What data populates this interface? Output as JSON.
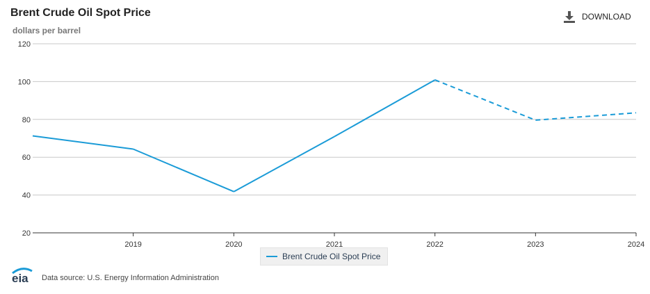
{
  "header": {
    "title": "Brent Crude Oil Spot Price",
    "units": "dollars per barrel",
    "download_label": "DOWNLOAD",
    "download_icon": "download-icon"
  },
  "footer": {
    "logo_text": "eia",
    "source": "Data source: U.S. Energy Information Administration"
  },
  "colors": {
    "series": "#1a9bd7",
    "grid": "#c8c8c8",
    "axis": "#333333"
  },
  "chart_data": {
    "type": "line",
    "title": "Brent Crude Oil Spot Price",
    "ylabel": "dollars per barrel",
    "xlabel": "",
    "ylim": [
      20,
      120
    ],
    "yticks": [
      20,
      40,
      60,
      80,
      100,
      120
    ],
    "xlim": [
      2018,
      2024
    ],
    "xticks": [
      2019,
      2020,
      2021,
      2022,
      2023,
      2024
    ],
    "grid": true,
    "legend": "bottom-center",
    "series": [
      {
        "name": "Brent Crude Oil Spot Price",
        "color": "#1a9bd7",
        "x": [
          2018,
          2019,
          2020,
          2021,
          2022,
          2023,
          2024
        ],
        "y": [
          71.3,
          64.3,
          41.8,
          70.9,
          100.9,
          79.6,
          83.5
        ],
        "style": [
          "solid",
          "solid",
          "solid",
          "solid",
          "dashed",
          "dashed"
        ]
      }
    ]
  }
}
